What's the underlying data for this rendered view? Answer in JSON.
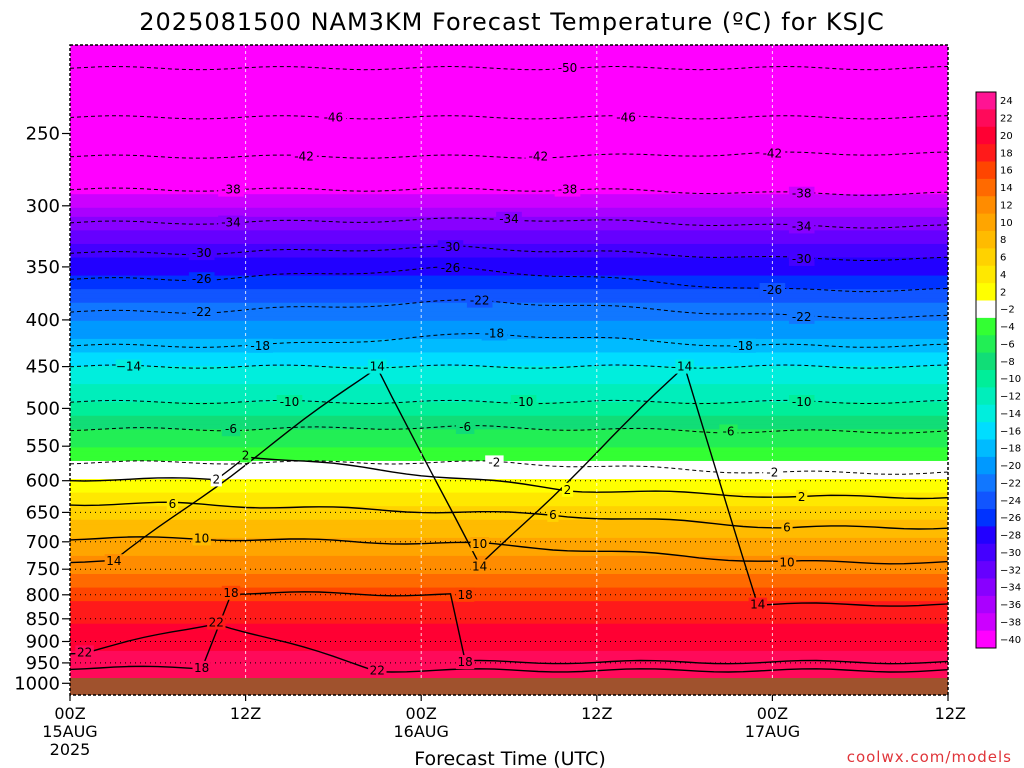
{
  "chart_data": {
    "type": "heatmap",
    "title": "2025081500 NAM3KM Forecast Temperature (ºC) for KSJC",
    "xlabel": "Forecast Time (UTC)",
    "credit": "coolwx.com/models",
    "x_ticks": [
      {
        "hour": 0,
        "label": "00Z",
        "date": "15AUG",
        "year": "2025"
      },
      {
        "hour": 12,
        "label": "12Z"
      },
      {
        "hour": 24,
        "label": "00Z",
        "date": "16AUG"
      },
      {
        "hour": 36,
        "label": "12Z"
      },
      {
        "hour": 48,
        "label": "00Z",
        "date": "17AUG"
      },
      {
        "hour": 60,
        "label": "12Z"
      }
    ],
    "x_range_hours": [
      0,
      60
    ],
    "y_ticks_hpa": [
      250,
      300,
      350,
      400,
      450,
      500,
      550,
      600,
      650,
      700,
      750,
      800,
      850,
      900,
      950,
      1000
    ],
    "y_range_hpa": [
      200,
      1030
    ],
    "y_scale": "log",
    "surface_color": "#a0522d",
    "colorbar": {
      "position": "right",
      "levels": [
        24,
        22,
        20,
        18,
        16,
        14,
        12,
        10,
        8,
        6,
        4,
        2,
        -2,
        -4,
        -6,
        -8,
        -10,
        -12,
        -14,
        -16,
        -18,
        -20,
        -22,
        -24,
        -26,
        -28,
        -30,
        -32,
        -34,
        -36,
        -38,
        -40
      ],
      "labels": [
        "24",
        "22",
        "20",
        "18",
        "16",
        "14",
        "12",
        "10",
        "8",
        "6",
        "4",
        "2",
        "−2",
        "−4",
        "−6",
        "−8",
        "−10",
        "−12",
        "−14",
        "−16",
        "−18",
        "−20",
        "−22",
        "−24",
        "−26",
        "−28",
        "−30",
        "−32",
        "−34",
        "−36",
        "−38",
        "−40"
      ],
      "colors": [
        "#ff1493",
        "#ff0a5a",
        "#ff0033",
        "#ff1a1a",
        "#ff4500",
        "#ff6a00",
        "#ff8c00",
        "#ffa500",
        "#ffbb00",
        "#ffd200",
        "#ffe800",
        "#ffff00",
        "#ffffff",
        "#33ff33",
        "#22ee55",
        "#11dd77",
        "#00ee99",
        "#00eebb",
        "#00eedd",
        "#00ddff",
        "#00bbff",
        "#0099ff",
        "#1177ff",
        "#1155ff",
        "#0033ff",
        "#2200ff",
        "#4400ff",
        "#6600ff",
        "#8800ff",
        "#aa00ff",
        "#cc00ff",
        "#ff00ff"
      ]
    },
    "profile_reference_hour": 0,
    "temperature_profile": {
      "pressure_hpa": [
        200,
        230,
        250,
        270,
        290,
        310,
        330,
        350,
        370,
        390,
        410,
        430,
        450,
        480,
        510,
        540,
        570,
        600,
        620,
        650,
        680,
        710,
        740,
        770,
        800,
        830,
        860,
        890,
        920,
        950,
        980,
        1010
      ],
      "temp_c": [
        -53,
        -48,
        -45,
        -42,
        -38,
        -34,
        -30,
        -27,
        -24,
        -21,
        -19,
        -17,
        -14,
        -11,
        -8,
        -5,
        -2,
        2,
        4,
        7,
        9,
        11,
        13,
        15,
        17,
        19,
        20,
        21,
        22,
        22,
        22,
        22
      ]
    },
    "contour_labels": [
      {
        "hour": 34,
        "hpa": 212,
        "text": "-50"
      },
      {
        "hour": 18,
        "hpa": 240,
        "text": "-46"
      },
      {
        "hour": 38,
        "hpa": 240,
        "text": "-46"
      },
      {
        "hour": 16,
        "hpa": 265,
        "text": "-42"
      },
      {
        "hour": 32,
        "hpa": 265,
        "text": "-42"
      },
      {
        "hour": 48,
        "hpa": 263,
        "text": "-42"
      },
      {
        "hour": 11,
        "hpa": 288,
        "text": "-38"
      },
      {
        "hour": 34,
        "hpa": 288,
        "text": "-38"
      },
      {
        "hour": 50,
        "hpa": 291,
        "text": "-38"
      },
      {
        "hour": 11,
        "hpa": 313,
        "text": "-34"
      },
      {
        "hour": 30,
        "hpa": 310,
        "text": "-34"
      },
      {
        "hour": 50,
        "hpa": 316,
        "text": "-34"
      },
      {
        "hour": 9,
        "hpa": 338,
        "text": "-30"
      },
      {
        "hour": 26,
        "hpa": 333,
        "text": "-30"
      },
      {
        "hour": 50,
        "hpa": 343,
        "text": "-30"
      },
      {
        "hour": 9,
        "hpa": 361,
        "text": "-26"
      },
      {
        "hour": 26,
        "hpa": 351,
        "text": "-26"
      },
      {
        "hour": 48,
        "hpa": 371,
        "text": "-26"
      },
      {
        "hour": 9,
        "hpa": 392,
        "text": "-22"
      },
      {
        "hour": 28,
        "hpa": 381,
        "text": "-22"
      },
      {
        "hour": 50,
        "hpa": 397,
        "text": "-22"
      },
      {
        "hour": 13,
        "hpa": 427,
        "text": "-18"
      },
      {
        "hour": 29,
        "hpa": 414,
        "text": "-18"
      },
      {
        "hour": 46,
        "hpa": 427,
        "text": "-18"
      },
      {
        "hour": 4,
        "hpa": 450,
        "text": "−14"
      },
      {
        "hour": 21,
        "hpa": 450,
        "text": "14"
      },
      {
        "hour": 42,
        "hpa": 450,
        "text": "14"
      },
      {
        "hour": 15,
        "hpa": 492,
        "text": "-10"
      },
      {
        "hour": 31,
        "hpa": 492,
        "text": "-10"
      },
      {
        "hour": 50,
        "hpa": 492,
        "text": "-10"
      },
      {
        "hour": 11,
        "hpa": 527,
        "text": "-6"
      },
      {
        "hour": 27,
        "hpa": 524,
        "text": "-6"
      },
      {
        "hour": 45,
        "hpa": 530,
        "text": "-6"
      },
      {
        "hour": 12,
        "hpa": 563,
        "text": "2"
      },
      {
        "hour": 29,
        "hpa": 573,
        "text": "-2"
      },
      {
        "hour": 48,
        "hpa": 588,
        "text": "-2"
      },
      {
        "hour": 10,
        "hpa": 598,
        "text": "2"
      },
      {
        "hour": 34,
        "hpa": 614,
        "text": "2"
      },
      {
        "hour": 50,
        "hpa": 625,
        "text": "2"
      },
      {
        "hour": 7,
        "hpa": 636,
        "text": "6"
      },
      {
        "hour": 33,
        "hpa": 654,
        "text": "6"
      },
      {
        "hour": 49,
        "hpa": 675,
        "text": "6"
      },
      {
        "hour": 9,
        "hpa": 694,
        "text": "10"
      },
      {
        "hour": 28,
        "hpa": 704,
        "text": "10"
      },
      {
        "hour": 49,
        "hpa": 737,
        "text": "10"
      },
      {
        "hour": 3,
        "hpa": 735,
        "text": "14"
      },
      {
        "hour": 28,
        "hpa": 745,
        "text": "14"
      },
      {
        "hour": 47,
        "hpa": 820,
        "text": "14"
      },
      {
        "hour": 11,
        "hpa": 796,
        "text": "18"
      },
      {
        "hour": 27,
        "hpa": 800,
        "text": "18"
      },
      {
        "hour": 10,
        "hpa": 858,
        "text": "22"
      },
      {
        "hour": 1,
        "hpa": 925,
        "text": "22"
      },
      {
        "hour": 9,
        "hpa": 962,
        "text": "18"
      },
      {
        "hour": 21,
        "hpa": 968,
        "text": "22"
      },
      {
        "hour": 27,
        "hpa": 948,
        "text": "18"
      }
    ]
  }
}
